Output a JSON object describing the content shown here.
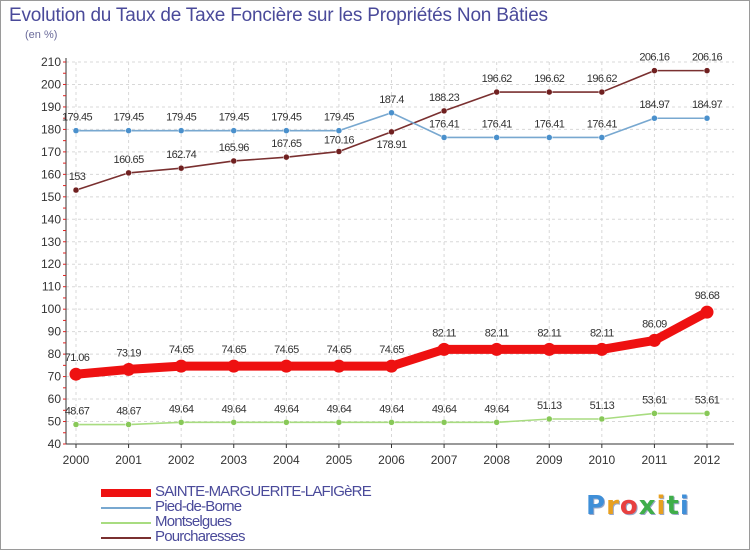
{
  "title": "Evolution du Taux de Taxe Foncière sur les Propriétés Non Bâties",
  "unit_label": "(en %)",
  "logo": {
    "text": "Proxiti",
    "colors": [
      "#3f8fd8",
      "#e8a020",
      "#e84040",
      "#3fae49",
      "#e8a020",
      "#3fae49",
      "#3f8fd8"
    ]
  },
  "chart_data": {
    "type": "line",
    "title": "Evolution du Taux de Taxe Foncière sur les Propriétés Non Bâties",
    "ylabel": "(en %)",
    "xlabel": "",
    "x": [
      "2000",
      "2001",
      "2002",
      "2003",
      "2004",
      "2005",
      "2006",
      "2007",
      "2008",
      "2009",
      "2010",
      "2011",
      "2012"
    ],
    "ylim": [
      40,
      210
    ],
    "yticks": [
      40,
      50,
      60,
      70,
      80,
      90,
      100,
      110,
      120,
      130,
      140,
      150,
      160,
      170,
      180,
      190,
      200,
      210
    ],
    "grid": true,
    "legend_position": "bottom-left",
    "series": [
      {
        "name": "SAINTE-MARGUERITE-LAFIGèRE",
        "color": "#ee1111",
        "point_color": "#ee1111",
        "emphasis": true,
        "values": [
          71.06,
          73.19,
          74.65,
          74.65,
          74.65,
          74.65,
          74.65,
          82.11,
          82.11,
          82.11,
          82.11,
          86.09,
          98.68
        ],
        "labels": [
          "71.06",
          "73.19",
          "74.65",
          "74.65",
          "74.65",
          "74.65",
          "74.65",
          "82.11",
          "82.11",
          "82.11",
          "82.11",
          "86.09",
          "98.68"
        ]
      },
      {
        "name": "Pied-de-Borne",
        "color": "#78a8d0",
        "point_color": "#4a90cc",
        "values": [
          179.45,
          179.45,
          179.45,
          179.45,
          179.45,
          179.45,
          187.4,
          176.41,
          176.41,
          176.41,
          176.41,
          184.97,
          184.97
        ],
        "labels": [
          "179.45",
          "179.45",
          "179.45",
          "179.45",
          "179.45",
          "179.45",
          "187.4",
          "176.41",
          "176.41",
          "176.41",
          "176.41",
          "184.97",
          "184.97"
        ]
      },
      {
        "name": "Montselgues",
        "color": "#a8dc80",
        "point_color": "#88c858",
        "values": [
          48.67,
          48.67,
          49.64,
          49.64,
          49.64,
          49.64,
          49.64,
          49.64,
          49.64,
          51.13,
          51.13,
          53.61,
          53.61
        ],
        "labels": [
          "48.67",
          "48.67",
          "49.64",
          "49.64",
          "49.64",
          "49.64",
          "49.64",
          "49.64",
          "49.64",
          "51.13",
          "51.13",
          "53.61",
          "53.61"
        ]
      },
      {
        "name": "Pourcharesses",
        "color": "#7a3030",
        "point_color": "#702020",
        "values": [
          153,
          160.65,
          162.74,
          165.96,
          167.65,
          170.16,
          178.91,
          188.23,
          196.62,
          196.62,
          196.62,
          206.16,
          206.16
        ],
        "labels": [
          "153",
          "160.65",
          "162.74",
          "165.96",
          "167.65",
          "170.16",
          "178.91",
          "188.23",
          "196.62",
          "196.62",
          "196.62",
          "206.16",
          "206.16"
        ]
      }
    ]
  }
}
